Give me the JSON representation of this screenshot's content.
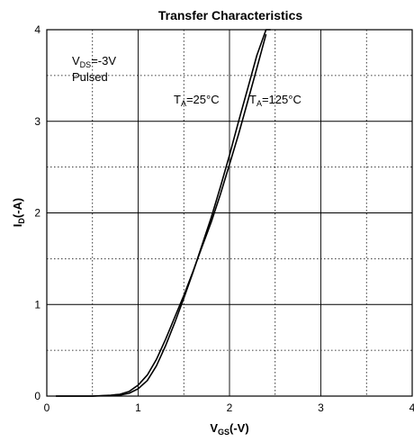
{
  "chart_data": {
    "type": "line",
    "title": "Transfer Characteristics",
    "xlabel": {
      "main": "V",
      "sub": "GS",
      "rest": "(-V)"
    },
    "ylabel": {
      "main": "I",
      "sub": "D",
      "rest": "(-A)"
    },
    "xlim": [
      0,
      4
    ],
    "ylim": [
      0,
      4
    ],
    "x_ticks": [
      "0",
      "1",
      "2",
      "3",
      "4"
    ],
    "y_ticks": [
      "0",
      "1",
      "2",
      "3",
      "4"
    ],
    "grid": true,
    "annotations": {
      "vds": {
        "main": "V",
        "sub": "DS",
        "rest": "=-3V"
      },
      "pulsed": "Pulsed",
      "t25": {
        "main": "T",
        "sub": "A",
        "rest": "=25°C"
      },
      "t125": {
        "main": "T",
        "sub": "A",
        "rest": "=125°C"
      }
    },
    "series": [
      {
        "name": "TA=25°C",
        "x": [
          0.1,
          0.5,
          0.8,
          0.9,
          1.0,
          1.1,
          1.2,
          1.3,
          1.4,
          1.5,
          1.6,
          1.7,
          1.8,
          1.9,
          2.0,
          2.1,
          2.2,
          2.3,
          2.4,
          2.45
        ],
        "y": [
          0.0,
          0.0,
          0.01,
          0.03,
          0.08,
          0.17,
          0.33,
          0.55,
          0.8,
          1.07,
          1.35,
          1.65,
          1.95,
          2.28,
          2.63,
          3.0,
          3.36,
          3.72,
          4.0,
          4.0
        ]
      },
      {
        "name": "TA=125°C",
        "x": [
          0.1,
          0.5,
          0.7,
          0.8,
          0.9,
          1.0,
          1.1,
          1.2,
          1.3,
          1.4,
          1.5,
          1.6,
          1.7,
          1.8,
          1.9,
          2.0,
          2.1,
          2.2,
          2.3,
          2.4
        ],
        "y": [
          0.0,
          0.0,
          0.01,
          0.02,
          0.05,
          0.12,
          0.23,
          0.4,
          0.62,
          0.86,
          1.1,
          1.36,
          1.63,
          1.9,
          2.2,
          2.53,
          2.86,
          3.22,
          3.58,
          3.95
        ]
      }
    ]
  }
}
